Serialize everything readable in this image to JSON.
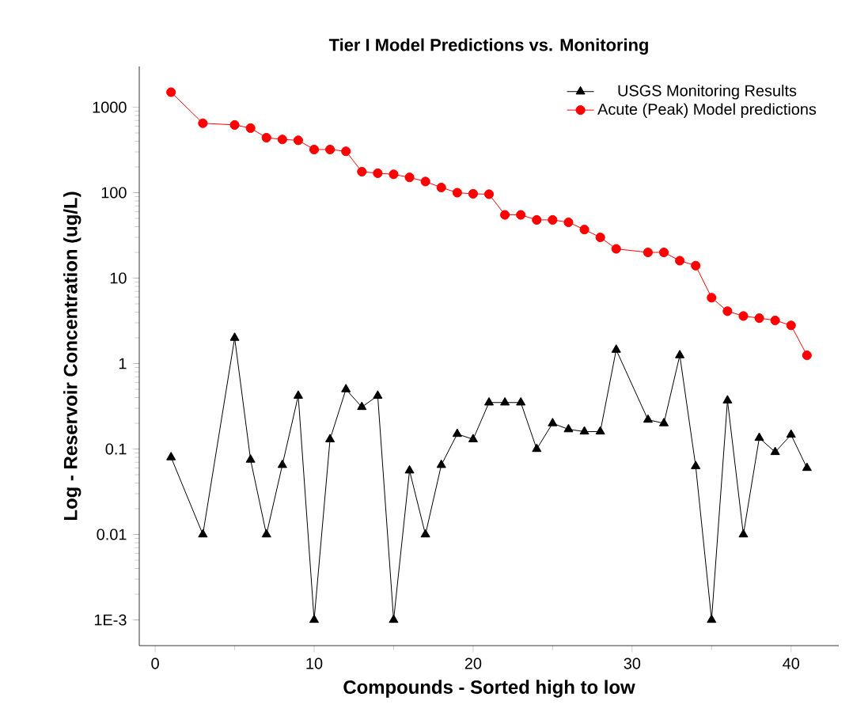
{
  "chart_data": {
    "type": "line",
    "title": "Tier I Model Predictions vs. Monitoring",
    "xlabel": "Compounds - Sorted high to low",
    "ylabel": "Log - Reservoir Concentration (ug/L)",
    "x": [
      1,
      3,
      5,
      6,
      7,
      8,
      9,
      10,
      11,
      12,
      13,
      14,
      15,
      16,
      17,
      18,
      19,
      20,
      21,
      22,
      23,
      24,
      25,
      26,
      27,
      28,
      29,
      31,
      32,
      33,
      34,
      35,
      36,
      37,
      38,
      39,
      40,
      41
    ],
    "series": [
      {
        "name": "USGS Monitoring Results",
        "color": "#000000",
        "marker": "triangle",
        "values": [
          0.08,
          0.01,
          2.0,
          0.075,
          0.01,
          0.065,
          0.42,
          0.001,
          0.13,
          0.5,
          0.31,
          0.42,
          0.001,
          0.056,
          0.01,
          0.065,
          0.15,
          0.13,
          0.35,
          0.35,
          0.35,
          0.1,
          0.2,
          0.17,
          0.16,
          0.16,
          1.45,
          0.22,
          0.2,
          1.25,
          0.063,
          0.001,
          0.37,
          0.01,
          0.135,
          0.092,
          0.147,
          0.06
        ]
      },
      {
        "name": "Acute (Peak) Model predictions",
        "color": "#ff0000",
        "marker": "circle",
        "values": [
          1500,
          650,
          620,
          570,
          440,
          420,
          410,
          320,
          320,
          305,
          176,
          169,
          164,
          151,
          135,
          115,
          100,
          97,
          96,
          55,
          55,
          48,
          48,
          45,
          37,
          30,
          22,
          20,
          20,
          16,
          14,
          5.9,
          4.1,
          3.6,
          3.4,
          3.2,
          2.8,
          1.25
        ]
      }
    ],
    "log": "y",
    "xlim": [
      -1,
      43
    ],
    "ylim": [
      0.0005,
      3000
    ],
    "xticks": [
      0,
      10,
      20,
      30,
      40
    ],
    "yticks": [
      {
        "value": 0.001,
        "label": "1E-3"
      },
      0.01,
      0.1,
      1,
      10,
      100,
      1000
    ],
    "legend": "top right"
  }
}
